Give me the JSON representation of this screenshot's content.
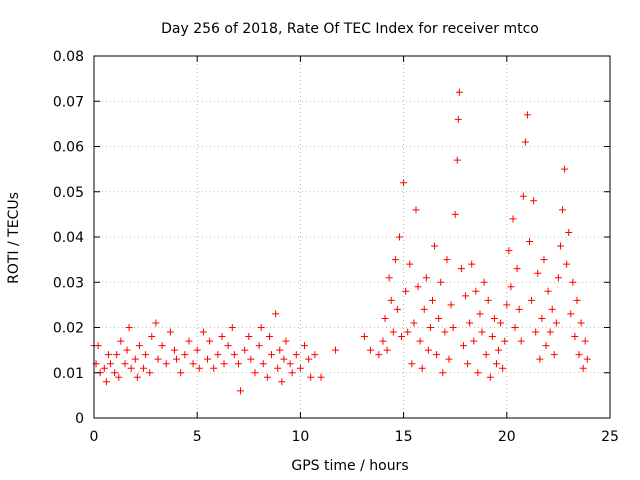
{
  "chart_data": {
    "type": "scatter",
    "title": "Day 256 of 2018, Rate Of TEC Index for receiver mtco",
    "xlabel": "GPS time / hours",
    "ylabel": "ROTI / TECUs",
    "xlim": [
      0,
      25
    ],
    "ylim": [
      0,
      0.08
    ],
    "xticks": [
      "0",
      "5",
      "10",
      "15",
      "20",
      "25"
    ],
    "yticks": [
      "0",
      "0.01",
      "0.02",
      "0.03",
      "0.04",
      "0.05",
      "0.06",
      "0.07",
      "0.08"
    ],
    "grid": true,
    "marker": "+",
    "color": "#ff0000",
    "series": [
      {
        "points": [
          [
            0.0,
            0.016
          ],
          [
            0.1,
            0.012
          ],
          [
            0.2,
            0.016
          ],
          [
            0.3,
            0.01
          ],
          [
            0.5,
            0.011
          ],
          [
            0.6,
            0.008
          ],
          [
            0.7,
            0.014
          ],
          [
            0.8,
            0.012
          ],
          [
            1.0,
            0.01
          ],
          [
            1.1,
            0.014
          ],
          [
            1.2,
            0.009
          ],
          [
            1.3,
            0.017
          ],
          [
            1.5,
            0.012
          ],
          [
            1.6,
            0.015
          ],
          [
            1.7,
            0.02
          ],
          [
            1.8,
            0.011
          ],
          [
            2.0,
            0.013
          ],
          [
            2.1,
            0.009
          ],
          [
            2.2,
            0.016
          ],
          [
            2.4,
            0.011
          ],
          [
            2.5,
            0.014
          ],
          [
            2.7,
            0.01
          ],
          [
            2.8,
            0.018
          ],
          [
            3.0,
            0.021
          ],
          [
            3.1,
            0.013
          ],
          [
            3.3,
            0.016
          ],
          [
            3.5,
            0.012
          ],
          [
            3.7,
            0.019
          ],
          [
            3.9,
            0.015
          ],
          [
            4.0,
            0.013
          ],
          [
            4.2,
            0.01
          ],
          [
            4.4,
            0.014
          ],
          [
            4.6,
            0.017
          ],
          [
            4.8,
            0.012
          ],
          [
            5.0,
            0.015
          ],
          [
            5.1,
            0.011
          ],
          [
            5.3,
            0.019
          ],
          [
            5.5,
            0.013
          ],
          [
            5.6,
            0.017
          ],
          [
            5.8,
            0.011
          ],
          [
            6.0,
            0.014
          ],
          [
            6.2,
            0.018
          ],
          [
            6.3,
            0.012
          ],
          [
            6.5,
            0.016
          ],
          [
            6.7,
            0.02
          ],
          [
            6.8,
            0.014
          ],
          [
            7.0,
            0.012
          ],
          [
            7.1,
            0.006
          ],
          [
            7.3,
            0.015
          ],
          [
            7.5,
            0.018
          ],
          [
            7.6,
            0.013
          ],
          [
            7.8,
            0.01
          ],
          [
            8.0,
            0.016
          ],
          [
            8.1,
            0.02
          ],
          [
            8.2,
            0.012
          ],
          [
            8.4,
            0.009
          ],
          [
            8.5,
            0.018
          ],
          [
            8.6,
            0.014
          ],
          [
            8.8,
            0.023
          ],
          [
            8.9,
            0.011
          ],
          [
            9.0,
            0.015
          ],
          [
            9.1,
            0.008
          ],
          [
            9.2,
            0.013
          ],
          [
            9.3,
            0.017
          ],
          [
            9.5,
            0.012
          ],
          [
            9.6,
            0.01
          ],
          [
            9.8,
            0.014
          ],
          [
            10.0,
            0.011
          ],
          [
            10.2,
            0.016
          ],
          [
            10.4,
            0.013
          ],
          [
            10.5,
            0.009
          ],
          [
            10.7,
            0.014
          ],
          [
            11.0,
            0.009
          ],
          [
            11.7,
            0.015
          ],
          [
            13.1,
            0.018
          ],
          [
            13.4,
            0.015
          ],
          [
            13.8,
            0.014
          ],
          [
            14.0,
            0.017
          ],
          [
            14.1,
            0.022
          ],
          [
            14.2,
            0.015
          ],
          [
            14.3,
            0.031
          ],
          [
            14.4,
            0.026
          ],
          [
            14.5,
            0.019
          ],
          [
            14.6,
            0.035
          ],
          [
            14.7,
            0.024
          ],
          [
            14.8,
            0.04
          ],
          [
            14.9,
            0.018
          ],
          [
            15.0,
            0.052
          ],
          [
            15.1,
            0.028
          ],
          [
            15.2,
            0.019
          ],
          [
            15.3,
            0.034
          ],
          [
            15.4,
            0.012
          ],
          [
            15.5,
            0.021
          ],
          [
            15.6,
            0.046
          ],
          [
            15.7,
            0.029
          ],
          [
            15.8,
            0.017
          ],
          [
            15.9,
            0.011
          ],
          [
            16.0,
            0.024
          ],
          [
            16.1,
            0.031
          ],
          [
            16.2,
            0.015
          ],
          [
            16.3,
            0.02
          ],
          [
            16.4,
            0.026
          ],
          [
            16.5,
            0.038
          ],
          [
            16.6,
            0.014
          ],
          [
            16.7,
            0.022
          ],
          [
            16.8,
            0.03
          ],
          [
            16.9,
            0.01
          ],
          [
            17.0,
            0.019
          ],
          [
            17.1,
            0.035
          ],
          [
            17.2,
            0.013
          ],
          [
            17.3,
            0.025
          ],
          [
            17.4,
            0.02
          ],
          [
            17.5,
            0.045
          ],
          [
            17.6,
            0.057
          ],
          [
            17.65,
            0.066
          ],
          [
            17.7,
            0.072
          ],
          [
            17.8,
            0.033
          ],
          [
            17.9,
            0.016
          ],
          [
            18.0,
            0.027
          ],
          [
            18.1,
            0.012
          ],
          [
            18.2,
            0.021
          ],
          [
            18.3,
            0.034
          ],
          [
            18.4,
            0.017
          ],
          [
            18.5,
            0.028
          ],
          [
            18.6,
            0.01
          ],
          [
            18.7,
            0.023
          ],
          [
            18.8,
            0.019
          ],
          [
            18.9,
            0.03
          ],
          [
            19.0,
            0.014
          ],
          [
            19.1,
            0.026
          ],
          [
            19.2,
            0.009
          ],
          [
            19.3,
            0.018
          ],
          [
            19.4,
            0.022
          ],
          [
            19.5,
            0.012
          ],
          [
            19.6,
            0.015
          ],
          [
            19.7,
            0.021
          ],
          [
            19.8,
            0.011
          ],
          [
            19.9,
            0.017
          ],
          [
            20.0,
            0.025
          ],
          [
            20.1,
            0.037
          ],
          [
            20.2,
            0.029
          ],
          [
            20.3,
            0.044
          ],
          [
            20.4,
            0.02
          ],
          [
            20.5,
            0.033
          ],
          [
            20.6,
            0.024
          ],
          [
            20.7,
            0.017
          ],
          [
            20.8,
            0.049
          ],
          [
            20.9,
            0.061
          ],
          [
            21.0,
            0.067
          ],
          [
            21.1,
            0.039
          ],
          [
            21.2,
            0.026
          ],
          [
            21.3,
            0.048
          ],
          [
            21.4,
            0.019
          ],
          [
            21.5,
            0.032
          ],
          [
            21.6,
            0.013
          ],
          [
            21.7,
            0.022
          ],
          [
            21.8,
            0.035
          ],
          [
            21.9,
            0.016
          ],
          [
            22.0,
            0.028
          ],
          [
            22.1,
            0.019
          ],
          [
            22.2,
            0.024
          ],
          [
            22.3,
            0.014
          ],
          [
            22.4,
            0.021
          ],
          [
            22.5,
            0.031
          ],
          [
            22.6,
            0.038
          ],
          [
            22.7,
            0.046
          ],
          [
            22.8,
            0.055
          ],
          [
            22.9,
            0.034
          ],
          [
            23.0,
            0.041
          ],
          [
            23.1,
            0.023
          ],
          [
            23.2,
            0.03
          ],
          [
            23.3,
            0.018
          ],
          [
            23.4,
            0.026
          ],
          [
            23.5,
            0.014
          ],
          [
            23.6,
            0.021
          ],
          [
            23.7,
            0.011
          ],
          [
            23.8,
            0.017
          ],
          [
            23.9,
            0.013
          ]
        ]
      }
    ]
  }
}
